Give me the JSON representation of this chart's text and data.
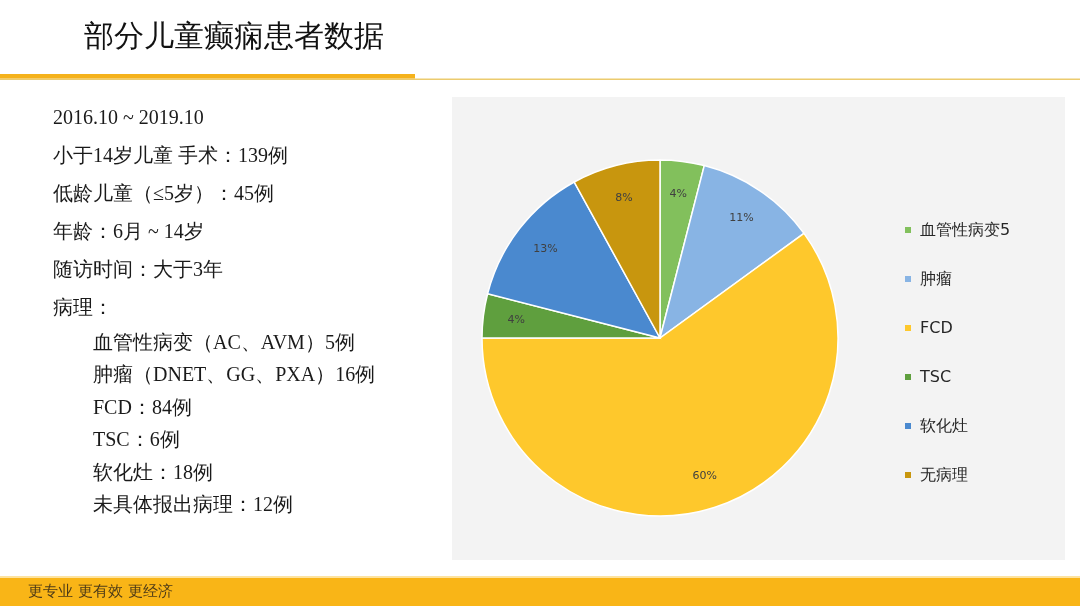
{
  "chart_data": {
    "type": "pie",
    "title": "部分儿童癫痫患者数据",
    "categories": [
      "血管性病变5",
      "肿瘤",
      "FCD",
      "TSC",
      "软化灶",
      "无病理"
    ],
    "values": [
      4,
      11,
      60,
      4,
      13,
      8
    ],
    "value_labels": [
      "4%",
      "11%",
      "60%",
      "4%",
      "13%",
      "8%"
    ],
    "colors": [
      "#82c05c",
      "#88b4e4",
      "#fec82c",
      "#5f9f3e",
      "#4a89cf",
      "#c8960e"
    ],
    "legend": "right",
    "annotations": [
      "2016.10 ~ 2019.10",
      "小于14岁儿童 手术：139例",
      "低龄儿童（≤5岁）：45例",
      "年龄：6月 ~ 14岁",
      "随访时间：大于3年",
      "病理：",
      "血管性病变（AC、AVM）5例",
      "肿瘤（DNET、GG、PXA）16例",
      "FCD：84例",
      "TSC：6例",
      "软化灶：18例",
      "未具体报出病理：12例",
      "更专业  更有效  更经济"
    ]
  }
}
